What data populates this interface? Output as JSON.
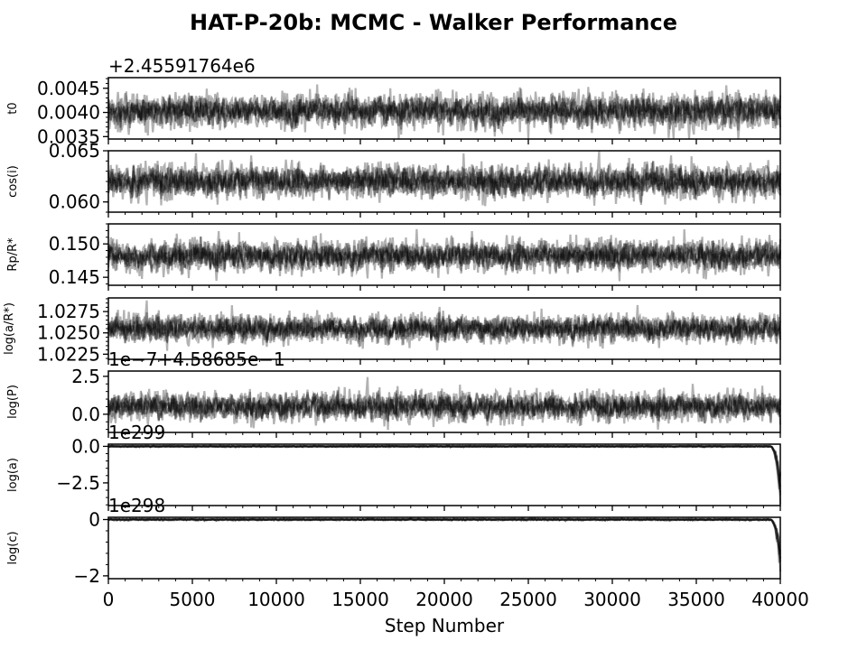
{
  "chart_data": {
    "type": "line",
    "title": "HAT-P-20b: MCMC - Walker Performance",
    "xlabel": "Step Number",
    "xlim": [
      0,
      40000
    ],
    "x_ticks": [
      0,
      5000,
      10000,
      15000,
      20000,
      25000,
      30000,
      35000,
      40000
    ],
    "x_tick_labels": [
      "0",
      "5000",
      "10000",
      "15000",
      "20000",
      "25000",
      "30000",
      "35000",
      "40000"
    ],
    "series_color": "#000000",
    "panels": [
      {
        "ylabel": "t0",
        "offset_text": "+2.45591764e6",
        "ylim": [
          0.00345,
          0.00472
        ],
        "y_ticks": [
          0.0035,
          0.004,
          0.0045
        ],
        "y_tick_labels": [
          "0.0035",
          "0.0040",
          "0.0045"
        ],
        "center": 0.00403,
        "spread": 0.00024,
        "tail_to": null
      },
      {
        "ylabel": "cos(i)",
        "offset_text": "",
        "ylim": [
          0.059,
          0.065
        ],
        "y_ticks": [
          0.06,
          0.065
        ],
        "y_tick_labels": [
          "0.060",
          "0.065"
        ],
        "center": 0.062,
        "spread": 0.0011,
        "tail_to": null
      },
      {
        "ylabel": "Rp/R*",
        "offset_text": "",
        "ylim": [
          0.1438,
          0.153
        ],
        "y_ticks": [
          0.145,
          0.15
        ],
        "y_tick_labels": [
          "0.145",
          "0.150"
        ],
        "center": 0.1482,
        "spread": 0.0016,
        "tail_to": null
      },
      {
        "ylabel": "log(a/R*)",
        "offset_text": "",
        "ylim": [
          1.0219,
          1.0291
        ],
        "y_ticks": [
          1.0225,
          1.025,
          1.0275
        ],
        "y_tick_labels": [
          "1.0225",
          "1.0250",
          "1.0275"
        ],
        "center": 1.0255,
        "spread": 0.0011,
        "tail_to": null
      },
      {
        "ylabel": "log(P)",
        "offset_text": "1e−7+4.58685e−1",
        "ylim": [
          -1.2,
          2.85
        ],
        "y_ticks": [
          0.0,
          2.5
        ],
        "y_tick_labels": [
          "0.0",
          "2.5"
        ],
        "center": 0.5,
        "spread": 0.65,
        "tail_to": null
      },
      {
        "ylabel": "log(a)",
        "offset_text": "1e299",
        "ylim": [
          -4.05,
          0.15
        ],
        "y_ticks": [
          0.0,
          -2.5
        ],
        "y_tick_labels": [
          "0.0",
          "−2.5"
        ],
        "center": 0.0,
        "spread": 0.03,
        "tail_to": -4.0
      },
      {
        "ylabel": "log(c)",
        "offset_text": "1e298",
        "ylim": [
          -2.1,
          0.08
        ],
        "y_ticks": [
          0,
          -2
        ],
        "y_tick_labels": [
          "0",
          "−2"
        ],
        "center": 0.0,
        "spread": 0.02,
        "tail_to": -2.05
      }
    ]
  }
}
